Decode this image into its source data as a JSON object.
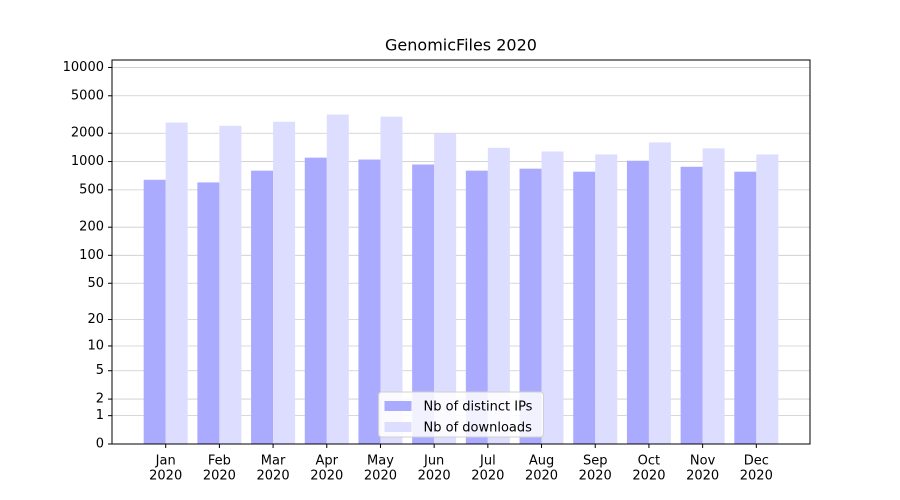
{
  "chart_data": {
    "type": "bar",
    "title": "GenomicFiles 2020",
    "categories": [
      [
        "Jan",
        "2020"
      ],
      [
        "Feb",
        "2020"
      ],
      [
        "Mar",
        "2020"
      ],
      [
        "Apr",
        "2020"
      ],
      [
        "May",
        "2020"
      ],
      [
        "Jun",
        "2020"
      ],
      [
        "Jul",
        "2020"
      ],
      [
        "Aug",
        "2020"
      ],
      [
        "Sep",
        "2020"
      ],
      [
        "Oct",
        "2020"
      ],
      [
        "Nov",
        "2020"
      ],
      [
        "Dec",
        "2020"
      ]
    ],
    "series": [
      {
        "name": "Nb of distinct IPs",
        "color": "#aaaaff",
        "values": [
          640,
          600,
          800,
          1100,
          1050,
          930,
          800,
          840,
          780,
          1020,
          880,
          780
        ]
      },
      {
        "name": "Nb of downloads",
        "color": "#ddddff",
        "values": [
          2600,
          2400,
          2650,
          3160,
          3000,
          2000,
          1400,
          1280,
          1190,
          1600,
          1380,
          1190
        ]
      }
    ],
    "yscale": "log1p",
    "ylim": [
      0,
      12000
    ],
    "yticks": [
      0,
      1,
      2,
      5,
      10,
      20,
      50,
      100,
      200,
      500,
      1000,
      2000,
      5000,
      10000
    ],
    "grid": true,
    "legend": "lower center"
  }
}
